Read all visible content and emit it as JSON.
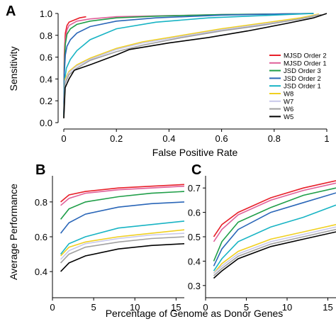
{
  "panels": {
    "a": {
      "letter": "A"
    },
    "b": {
      "letter": "B"
    },
    "c": {
      "letter": "C"
    }
  },
  "shared_labels": {
    "bottom_xlabel": "Percentage of Genome as Donor Genes",
    "bc_ylabel": "Average Performance"
  },
  "chart_data": [
    {
      "type": "line",
      "panel": "A",
      "xlabel": "False Positive Rate",
      "ylabel": "Sensitivity",
      "xlim": [
        0,
        1
      ],
      "ylim": [
        0,
        1
      ],
      "xticks": [
        "0",
        "0.2",
        "0.4",
        "0.6",
        "0.8",
        "1"
      ],
      "yticks": [
        "0.0",
        "0.2",
        "0.4",
        "0.6",
        "0.8",
        "1.0"
      ],
      "legend_position": "right",
      "grid": false,
      "series": [
        {
          "name": "MJSD Order 2",
          "color": "#e8202a",
          "points": [
            [
              0,
              0.04
            ],
            [
              0.002,
              0.62
            ],
            [
              0.006,
              0.82
            ],
            [
              0.012,
              0.89
            ],
            [
              0.02,
              0.92
            ],
            [
              0.04,
              0.94
            ],
            [
              0.06,
              0.96
            ],
            [
              0.085,
              0.97
            ]
          ]
        },
        {
          "name": "MJSD Order 1",
          "color": "#e0609a",
          "points": [
            [
              0,
              0.05
            ],
            [
              0.002,
              0.55
            ],
            [
              0.006,
              0.76
            ],
            [
              0.012,
              0.85
            ],
            [
              0.02,
              0.89
            ],
            [
              0.05,
              0.93
            ],
            [
              0.1,
              0.95
            ],
            [
              0.2,
              0.97
            ],
            [
              0.4,
              0.98
            ],
            [
              0.6,
              0.99
            ],
            [
              0.8,
              0.995
            ],
            [
              0.95,
              1.0
            ]
          ]
        },
        {
          "name": "JSD Order 3",
          "color": "#1f9e48",
          "points": [
            [
              0,
              0.05
            ],
            [
              0.002,
              0.5
            ],
            [
              0.006,
              0.72
            ],
            [
              0.012,
              0.81
            ],
            [
              0.025,
              0.86
            ],
            [
              0.05,
              0.9
            ],
            [
              0.1,
              0.93
            ],
            [
              0.2,
              0.96
            ],
            [
              0.35,
              0.975
            ],
            [
              0.6,
              0.99
            ],
            [
              0.8,
              0.995
            ],
            [
              0.95,
              1.0
            ]
          ]
        },
        {
          "name": "JSD Order 2",
          "color": "#2a66b8",
          "points": [
            [
              0,
              0.05
            ],
            [
              0.002,
              0.45
            ],
            [
              0.006,
              0.62
            ],
            [
              0.012,
              0.7
            ],
            [
              0.025,
              0.76
            ],
            [
              0.05,
              0.82
            ],
            [
              0.1,
              0.88
            ],
            [
              0.2,
              0.93
            ],
            [
              0.35,
              0.96
            ],
            [
              0.6,
              0.985
            ],
            [
              0.8,
              0.995
            ],
            [
              0.95,
              1.0
            ]
          ]
        },
        {
          "name": "JSD Order 1",
          "color": "#18b4c4",
          "points": [
            [
              0,
              0.05
            ],
            [
              0.004,
              0.4
            ],
            [
              0.01,
              0.5
            ],
            [
              0.025,
              0.58
            ],
            [
              0.05,
              0.66
            ],
            [
              0.1,
              0.76
            ],
            [
              0.2,
              0.86
            ],
            [
              0.35,
              0.92
            ],
            [
              0.55,
              0.96
            ],
            [
              0.75,
              0.98
            ],
            [
              0.95,
              1.0
            ]
          ]
        },
        {
          "name": "W8",
          "color": "#f0d020",
          "points": [
            [
              0,
              0.04
            ],
            [
              0.005,
              0.4
            ],
            [
              0.02,
              0.47
            ],
            [
              0.05,
              0.53
            ],
            [
              0.1,
              0.59
            ],
            [
              0.2,
              0.68
            ],
            [
              0.3,
              0.74
            ],
            [
              0.45,
              0.8
            ],
            [
              0.6,
              0.86
            ],
            [
              0.75,
              0.91
            ],
            [
              0.9,
              0.96
            ],
            [
              0.97,
              0.995
            ]
          ]
        },
        {
          "name": "W7",
          "color": "#c8c8ea",
          "points": [
            [
              0,
              0.04
            ],
            [
              0.005,
              0.38
            ],
            [
              0.02,
              0.46
            ],
            [
              0.05,
              0.52
            ],
            [
              0.1,
              0.58
            ],
            [
              0.2,
              0.67
            ],
            [
              0.3,
              0.73
            ],
            [
              0.45,
              0.79
            ],
            [
              0.6,
              0.85
            ],
            [
              0.75,
              0.9
            ],
            [
              0.9,
              0.95
            ],
            [
              0.97,
              0.99
            ]
          ]
        },
        {
          "name": "W6",
          "color": "#a0a0a0",
          "points": [
            [
              0,
              0.04
            ],
            [
              0.005,
              0.36
            ],
            [
              0.02,
              0.44
            ],
            [
              0.05,
              0.5
            ],
            [
              0.1,
              0.57
            ],
            [
              0.2,
              0.65
            ],
            [
              0.3,
              0.71
            ],
            [
              0.45,
              0.78
            ],
            [
              0.6,
              0.84
            ],
            [
              0.75,
              0.89
            ],
            [
              0.9,
              0.95
            ],
            [
              0.98,
              0.99
            ]
          ]
        },
        {
          "name": "W5",
          "color": "#000000",
          "points": [
            [
              0,
              0.04
            ],
            [
              0.005,
              0.32
            ],
            [
              0.02,
              0.4
            ],
            [
              0.04,
              0.48
            ],
            [
              0.1,
              0.53
            ],
            [
              0.2,
              0.62
            ],
            [
              0.25,
              0.67
            ],
            [
              0.4,
              0.73
            ],
            [
              0.55,
              0.78
            ],
            [
              0.7,
              0.84
            ],
            [
              0.85,
              0.91
            ],
            [
              0.95,
              0.96
            ],
            [
              1.0,
              1.0
            ]
          ]
        }
      ]
    },
    {
      "type": "line",
      "panel": "B",
      "xlim": [
        0,
        16
      ],
      "ylim": [
        0.25,
        0.95
      ],
      "xticks": [
        0,
        5,
        10,
        15
      ],
      "yticks": [
        0.4,
        0.6,
        0.8
      ],
      "grid": false,
      "x": [
        1,
        2,
        4,
        8,
        12,
        16
      ],
      "series": [
        {
          "color": "#e8202a",
          "values": [
            0.8,
            0.84,
            0.86,
            0.88,
            0.89,
            0.9
          ]
        },
        {
          "color": "#e0609a",
          "values": [
            0.78,
            0.82,
            0.85,
            0.87,
            0.88,
            0.89
          ]
        },
        {
          "color": "#1f9e48",
          "values": [
            0.7,
            0.76,
            0.8,
            0.83,
            0.85,
            0.86
          ]
        },
        {
          "color": "#2a66b8",
          "values": [
            0.62,
            0.68,
            0.73,
            0.77,
            0.79,
            0.8
          ]
        },
        {
          "color": "#18b4c4",
          "values": [
            0.5,
            0.56,
            0.6,
            0.65,
            0.67,
            0.69
          ]
        },
        {
          "color": "#f0d020",
          "values": [
            0.49,
            0.54,
            0.57,
            0.6,
            0.62,
            0.64
          ]
        },
        {
          "color": "#c8c8ea",
          "values": [
            0.47,
            0.52,
            0.56,
            0.59,
            0.61,
            0.62
          ]
        },
        {
          "color": "#a0a0a0",
          "values": [
            0.45,
            0.5,
            0.54,
            0.57,
            0.59,
            0.6
          ]
        },
        {
          "color": "#000000",
          "values": [
            0.4,
            0.45,
            0.49,
            0.53,
            0.55,
            0.56
          ]
        }
      ]
    },
    {
      "type": "line",
      "panel": "C",
      "xlim": [
        0,
        16
      ],
      "ylim": [
        0.25,
        0.75
      ],
      "xticks": [
        0,
        5,
        10,
        15
      ],
      "yticks": [
        0.3,
        0.4,
        0.5,
        0.6,
        0.7
      ],
      "grid": false,
      "x": [
        1,
        2,
        4,
        8,
        12,
        16
      ],
      "series": [
        {
          "color": "#e8202a",
          "values": [
            0.5,
            0.55,
            0.6,
            0.66,
            0.7,
            0.73
          ]
        },
        {
          "color": "#e0609a",
          "values": [
            0.48,
            0.53,
            0.59,
            0.65,
            0.69,
            0.72
          ]
        },
        {
          "color": "#1f9e48",
          "values": [
            0.4,
            0.48,
            0.56,
            0.62,
            0.67,
            0.7
          ]
        },
        {
          "color": "#2a66b8",
          "values": [
            0.38,
            0.45,
            0.53,
            0.6,
            0.64,
            0.68
          ]
        },
        {
          "color": "#18b4c4",
          "values": [
            0.36,
            0.41,
            0.48,
            0.54,
            0.58,
            0.63
          ]
        },
        {
          "color": "#f0d020",
          "values": [
            0.35,
            0.39,
            0.44,
            0.49,
            0.52,
            0.55
          ]
        },
        {
          "color": "#c8c8ea",
          "values": [
            0.35,
            0.38,
            0.43,
            0.48,
            0.51,
            0.54
          ]
        },
        {
          "color": "#a0a0a0",
          "values": [
            0.34,
            0.37,
            0.42,
            0.47,
            0.5,
            0.53
          ]
        },
        {
          "color": "#000000",
          "values": [
            0.33,
            0.36,
            0.41,
            0.46,
            0.49,
            0.52
          ]
        }
      ]
    }
  ]
}
